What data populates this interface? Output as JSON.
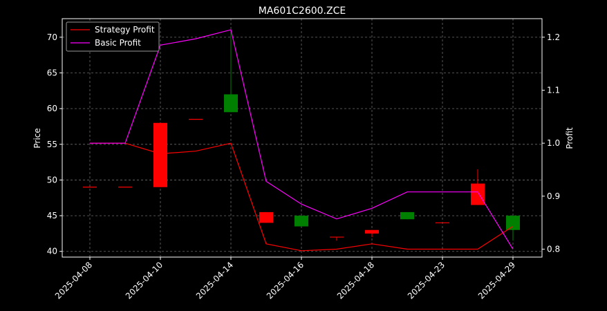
{
  "chart_data": {
    "type": "candlestick",
    "title": "MA601C2600.ZCE",
    "ylabel_left": "Price",
    "ylabel_right": "Profit",
    "xlabel": "",
    "grid": true,
    "legend_position": "top-left",
    "x_dates": [
      "2025-04-08",
      "2025-04-09",
      "2025-04-10",
      "2025-04-11",
      "2025-04-14",
      "2025-04-15",
      "2025-04-16",
      "2025-04-17",
      "2025-04-18",
      "2025-04-21",
      "2025-04-22",
      "2025-04-23",
      "2025-04-29"
    ],
    "x_tick_labels": [
      "2025-04-08",
      "2025-04-10",
      "2025-04-14",
      "2025-04-16",
      "2025-04-18",
      "2025-04-23",
      "2025-04-29"
    ],
    "x_tick_indices": [
      0,
      2,
      4,
      6,
      8,
      10,
      12
    ],
    "ylim_left": [
      39.2,
      72.6
    ],
    "yticks_left": [
      40,
      45,
      50,
      55,
      60,
      65,
      70
    ],
    "ylim_right": [
      0.785,
      1.235
    ],
    "yticks_right": [
      0.8,
      0.9,
      1.0,
      1.1,
      1.2
    ],
    "candles": [
      {
        "date": "2025-04-08",
        "open": 49.0,
        "close": 49.0,
        "high": 49.0,
        "low": 49.0,
        "color": "#ff0000"
      },
      {
        "date": "2025-04-09",
        "open": 49.0,
        "close": 49.0,
        "high": 49.0,
        "low": 49.0,
        "color": "#ff0000"
      },
      {
        "date": "2025-04-10",
        "open": 49.0,
        "close": 58.0,
        "high": 58.0,
        "low": 49.0,
        "color": "#ff0000"
      },
      {
        "date": "2025-04-11",
        "open": 58.5,
        "close": 58.5,
        "high": 58.5,
        "low": 58.5,
        "color": "#ff0000"
      },
      {
        "date": "2025-04-14",
        "open": 62.0,
        "close": 59.5,
        "high": 71.0,
        "low": 59.5,
        "color": "#008000"
      },
      {
        "date": "2025-04-15",
        "open": 44.0,
        "close": 45.5,
        "high": 45.5,
        "low": 44.0,
        "color": "#ff0000"
      },
      {
        "date": "2025-04-16",
        "open": 45.0,
        "close": 43.5,
        "high": 45.0,
        "low": 43.5,
        "color": "#008000"
      },
      {
        "date": "2025-04-17",
        "open": 42.0,
        "close": 42.0,
        "high": 42.0,
        "low": 41.5,
        "color": "#ff0000"
      },
      {
        "date": "2025-04-18",
        "open": 42.5,
        "close": 43.0,
        "high": 43.0,
        "low": 42.0,
        "color": "#ff0000"
      },
      {
        "date": "2025-04-21",
        "open": 45.5,
        "close": 44.5,
        "high": 45.5,
        "low": 44.5,
        "color": "#008000"
      },
      {
        "date": "2025-04-22",
        "open": 44.0,
        "close": 44.0,
        "high": 44.0,
        "low": 44.0,
        "color": "#ff0000"
      },
      {
        "date": "2025-04-23",
        "open": 46.5,
        "close": 49.5,
        "high": 51.5,
        "low": 46.5,
        "color": "#ff0000"
      },
      {
        "date": "2025-04-29",
        "open": 45.0,
        "close": 43.0,
        "high": 45.0,
        "low": 41.5,
        "color": "#008000"
      }
    ],
    "series": [
      {
        "name": "Strategy Profit",
        "axis": "right",
        "color": "#ff0000",
        "values": [
          1.0,
          1.0,
          0.98,
          0.985,
          1.0,
          0.81,
          0.797,
          0.8,
          0.81,
          0.8,
          0.8,
          0.8,
          0.843
        ]
      },
      {
        "name": "Basic Profit",
        "axis": "right",
        "color": "#ff00ff",
        "values": [
          1.0,
          1.0,
          1.185,
          1.197,
          1.214,
          0.928,
          0.885,
          0.857,
          0.877,
          0.908,
          0.908,
          0.908,
          0.8
        ]
      }
    ]
  },
  "colors": {
    "figure_bg": "#000000",
    "axes_bg": "#000000",
    "text": "#ffffff",
    "grid": "#6e6e6e"
  }
}
